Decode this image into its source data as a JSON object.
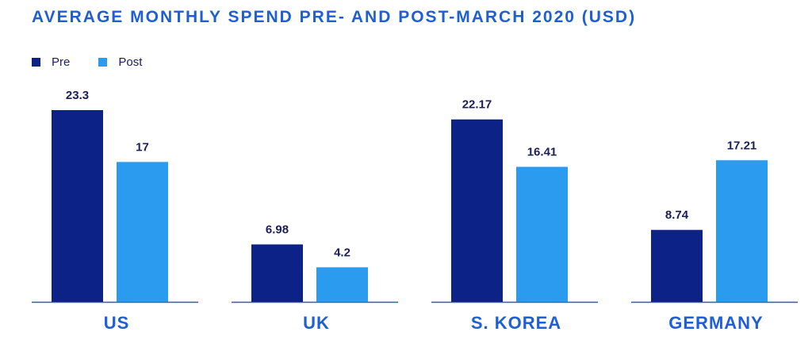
{
  "chart_data": {
    "type": "bar",
    "title": "AVERAGE MONTHLY SPEND PRE- AND POST-MARCH 2020 (USD)",
    "categories": [
      "US",
      "UK",
      "S. KOREA",
      "GERMANY"
    ],
    "series": [
      {
        "name": "Pre",
        "values": [
          23.3,
          6.98,
          22.17,
          8.74
        ],
        "labels": [
          "23.3",
          "6.98",
          "22.17",
          "8.74"
        ],
        "color": "#0d2287"
      },
      {
        "name": "Post",
        "values": [
          17,
          4.2,
          16.41,
          17.21
        ],
        "labels": [
          "17",
          "4.2",
          "16.41",
          "17.21"
        ],
        "color": "#2b9bf0"
      }
    ],
    "ylim": [
      0,
      23.3
    ],
    "grid": false,
    "legend": "top-left",
    "colors": {
      "title": "#1f5fd6",
      "category_label": "#1f5fd6",
      "value_label": "#1b1f5a",
      "baseline": "#1f5fd6"
    }
  }
}
